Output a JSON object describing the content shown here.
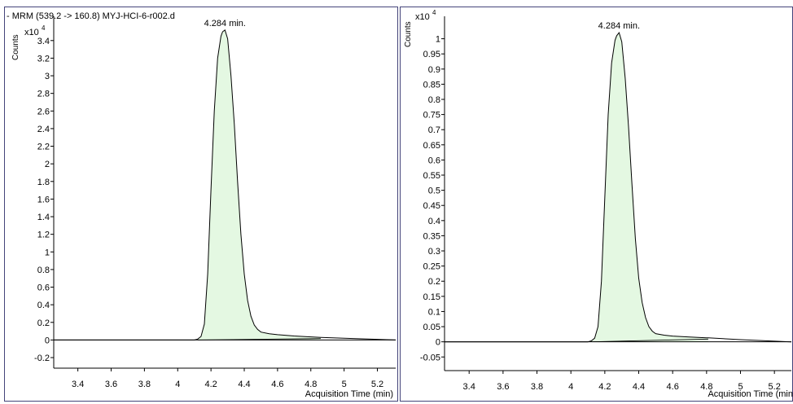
{
  "chart_data": [
    {
      "type": "area",
      "title": "- MRM (539.2 -> 160.8) MYJ-HCI-6-r002.d",
      "ylabel": "Counts",
      "y_multiplier": "x10",
      "y_exponent": "4",
      "xlabel": "Acquisition Time (min)",
      "x_ticks": [
        "3.4",
        "3.6",
        "3.8",
        "4",
        "4.2",
        "4.4",
        "4.6",
        "4.8",
        "5",
        "5.2"
      ],
      "y_ticks": [
        "-0.2",
        "0",
        "0.2",
        "0.4",
        "0.6",
        "0.8",
        "1",
        "1.2",
        "1.4",
        "1.6",
        "1.8",
        "2",
        "2.2",
        "2.4",
        "2.6",
        "2.8",
        "3",
        "3.2",
        "3.4"
      ],
      "xlim": [
        3.255,
        5.31
      ],
      "ylim": [
        -0.32,
        3.62
      ],
      "peak_label": "4.284 min.",
      "peak_rt": 4.284,
      "integration_range": [
        4.12,
        4.86
      ],
      "fill_color": "#e4f8e2",
      "line_color": "#000000",
      "x": [
        3.255,
        4.1,
        4.12,
        4.14,
        4.16,
        4.18,
        4.2,
        4.22,
        4.24,
        4.26,
        4.27,
        4.284,
        4.3,
        4.32,
        4.34,
        4.36,
        4.38,
        4.4,
        4.42,
        4.44,
        4.46,
        4.48,
        4.5,
        4.55,
        4.6,
        4.7,
        4.8,
        4.86,
        5.0,
        5.31
      ],
      "y": [
        0.0,
        0.0,
        0.01,
        0.04,
        0.18,
        0.75,
        1.7,
        2.6,
        3.2,
        3.45,
        3.5,
        3.52,
        3.42,
        3.0,
        2.45,
        1.8,
        1.2,
        0.75,
        0.45,
        0.27,
        0.17,
        0.12,
        0.09,
        0.07,
        0.06,
        0.045,
        0.035,
        0.03,
        0.02,
        0.0
      ]
    },
    {
      "type": "area",
      "title": "",
      "ylabel": "Counts",
      "y_multiplier": "x10",
      "y_exponent": "4",
      "xlabel": "Acquisition Time (min",
      "x_ticks": [
        "3.4",
        "3.6",
        "3.8",
        "4",
        "4.2",
        "4.4",
        "4.6",
        "4.8",
        "5",
        "5.2"
      ],
      "y_ticks": [
        "-0.05",
        "0",
        "0.05",
        "0.1",
        "0.15",
        "0.2",
        "0.25",
        "0.3",
        "0.35",
        "0.4",
        "0.45",
        "0.5",
        "0.55",
        "0.6",
        "0.65",
        "0.7",
        "0.75",
        "0.8",
        "0.85",
        "0.9",
        "0.95",
        "1"
      ],
      "xlim": [
        3.255,
        5.3
      ],
      "ylim": [
        -0.095,
        1.058
      ],
      "peak_label": "4.284 min.",
      "peak_rt": 4.284,
      "integration_range": [
        4.12,
        4.81
      ],
      "fill_color": "#e4f8e2",
      "line_color": "#000000",
      "x": [
        3.255,
        4.1,
        4.12,
        4.14,
        4.16,
        4.18,
        4.2,
        4.22,
        4.24,
        4.26,
        4.27,
        4.284,
        4.3,
        4.32,
        4.34,
        4.36,
        4.38,
        4.4,
        4.42,
        4.44,
        4.46,
        4.48,
        4.5,
        4.55,
        4.6,
        4.7,
        4.8,
        4.81,
        5.0,
        5.3
      ],
      "y": [
        0.0,
        0.0,
        0.003,
        0.012,
        0.05,
        0.2,
        0.48,
        0.75,
        0.92,
        0.995,
        1.01,
        1.02,
        0.99,
        0.87,
        0.71,
        0.52,
        0.34,
        0.21,
        0.13,
        0.08,
        0.05,
        0.035,
        0.027,
        0.022,
        0.019,
        0.016,
        0.013,
        0.013,
        0.007,
        0.0
      ]
    }
  ]
}
